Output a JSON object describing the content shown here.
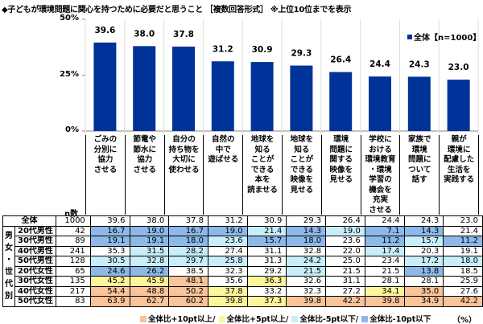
{
  "title": "◆子どもが環境問題に関心を持つために必要だと思うこと ［複数回答形式］ ※上位10位までを表示",
  "chart_data": {
    "type": "bar",
    "categories": [
      "ごみの\n分別に\n協力\nさせる",
      "節電や\n節水に\n協力\nさせる",
      "自分の\n持ち物を\n大切に\n使わせる",
      "自然の\n中で\n遊ばせる",
      "地球を\n知る\nことが\nできる\n本を\n読ませる",
      "地球を\n知る\nことが\nできる\n映像を\n見せる",
      "環境\n問題に\n関する\n映像を\n見せる",
      "学校に\nおける\n環境教育\n・環境\n学習の\n機会を\n充実\nさせる",
      "家族で\n環境\n問題に\nついて\n話す",
      "親が\n環境に\n配慮した\n生活を\n実践する"
    ],
    "series": [
      {
        "name": "全体【n=1000】",
        "values": [
          39.6,
          38.0,
          37.8,
          31.2,
          30.9,
          29.3,
          26.4,
          24.4,
          24.3,
          23.0
        ]
      }
    ],
    "ylim": [
      0,
      50
    ],
    "yticks": [
      "0%",
      "25%",
      "50%"
    ],
    "grid": false,
    "legend": "top-right",
    "bar_color": "#003399"
  },
  "table": {
    "n_header": "n数",
    "group_label": "男\n女\n・\n世\n代\n別",
    "total": {
      "label": "全体",
      "n": "1000",
      "values": [
        "39.6",
        "38.0",
        "37.8",
        "31.2",
        "30.9",
        "29.3",
        "26.4",
        "24.4",
        "24.3",
        "23.0"
      ]
    },
    "rows": [
      {
        "label": "20代男性",
        "n": "42",
        "values": [
          "16.7",
          "19.0",
          "16.7",
          "19.0",
          "21.4",
          "14.3",
          "19.0",
          "7.1",
          "14.3",
          "21.4"
        ]
      },
      {
        "label": "30代男性",
        "n": "89",
        "values": [
          "19.1",
          "19.1",
          "18.0",
          "23.6",
          "15.7",
          "18.0",
          "23.6",
          "11.2",
          "15.7",
          "11.2"
        ]
      },
      {
        "label": "40代男性",
        "n": "241",
        "values": [
          "35.3",
          "31.5",
          "28.2",
          "27.4",
          "31.1",
          "32.8",
          "22.0",
          "17.4",
          "20.3",
          "19.1"
        ]
      },
      {
        "label": "50代男性",
        "n": "128",
        "values": [
          "30.5",
          "32.8",
          "29.7",
          "25.8",
          "31.3",
          "24.2",
          "25.0",
          "23.4",
          "17.2",
          "18.0"
        ]
      },
      {
        "label": "20代女性",
        "n": "65",
        "values": [
          "24.6",
          "26.2",
          "38.5",
          "32.3",
          "29.2",
          "21.5",
          "21.5",
          "21.5",
          "13.8",
          "18.5"
        ]
      },
      {
        "label": "30代女性",
        "n": "135",
        "values": [
          "45.2",
          "45.9",
          "48.1",
          "35.6",
          "36.3",
          "32.6",
          "31.1",
          "28.1",
          "28.1",
          "25.9"
        ]
      },
      {
        "label": "40代女性",
        "n": "217",
        "values": [
          "54.4",
          "48.8",
          "50.2",
          "37.8",
          "33.2",
          "32.3",
          "27.2",
          "34.1",
          "35.0",
          "27.6"
        ]
      },
      {
        "label": "50代女性",
        "n": "83",
        "values": [
          "63.9",
          "62.7",
          "60.2",
          "39.8",
          "37.3",
          "39.8",
          "42.2",
          "39.8",
          "34.9",
          "42.2"
        ]
      }
    ]
  },
  "key": [
    {
      "label": "全体比+10pt以上/",
      "color": "#f9c49a"
    },
    {
      "label": "全体比+5pt以上/",
      "color": "#fdf59b"
    },
    {
      "label": "全体比-5pt以下/",
      "color": "#c8eefa"
    },
    {
      "label": "全体比-10pt以下",
      "color": "#8db8e8"
    }
  ],
  "unit": "（%）"
}
